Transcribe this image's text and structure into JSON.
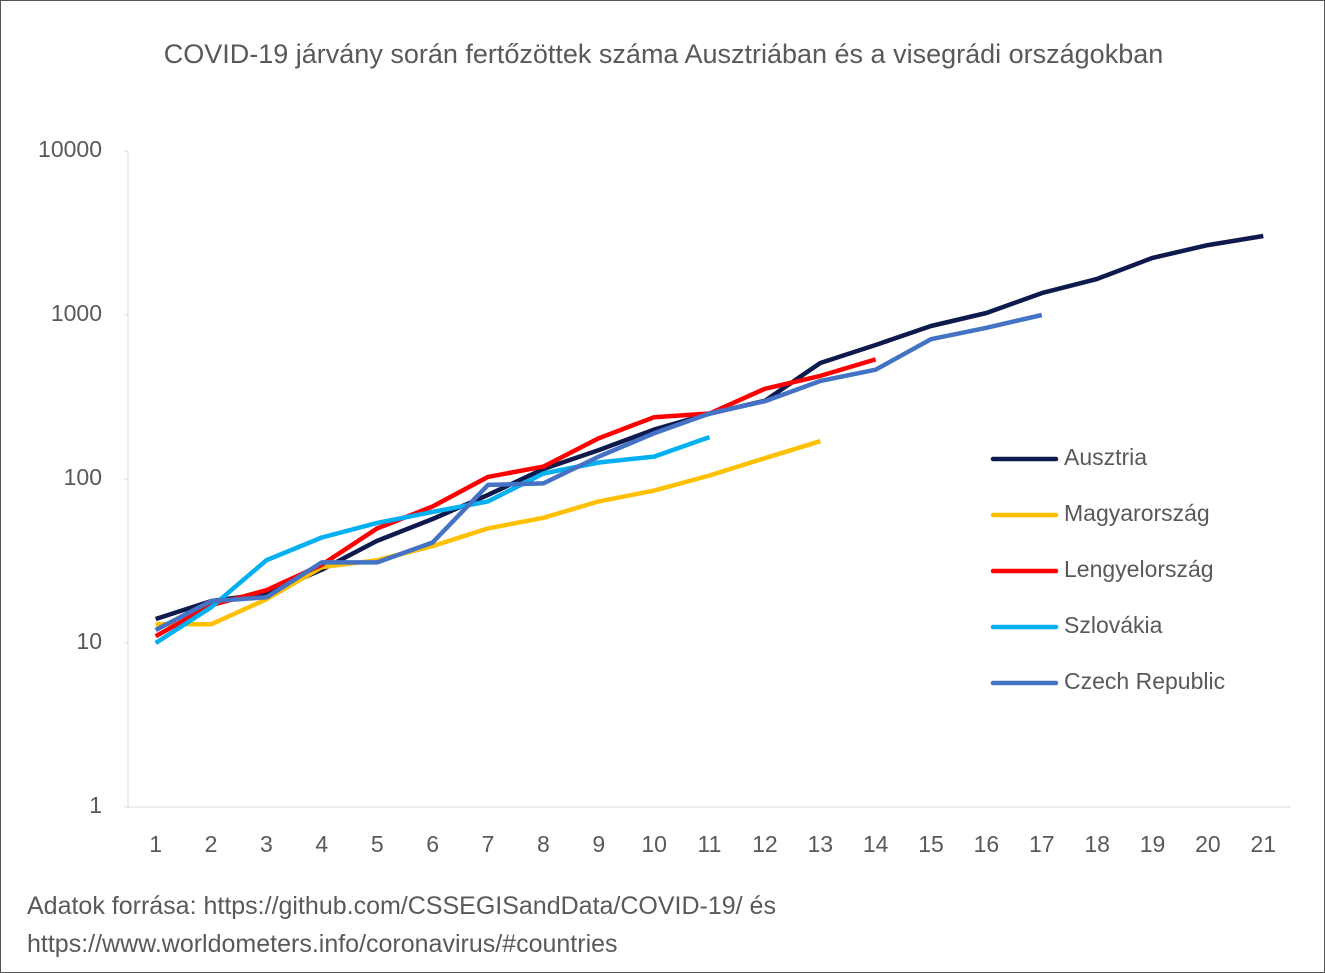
{
  "chart_data": {
    "type": "line",
    "title": "COVID-19 járvány során fertőzöttek száma Ausztriában és a visegrádi országokban",
    "source": [
      "Adatok forrása: https://github.com/CSSEGISandData/COVID-19/ és",
      "https://www.worldometers.info/coronavirus/#countries"
    ],
    "categories": [
      1,
      2,
      3,
      4,
      5,
      6,
      7,
      8,
      9,
      10,
      11,
      12,
      13,
      14,
      15,
      16,
      17,
      18,
      19,
      20,
      21
    ],
    "log_scale": true,
    "ylim": [
      1,
      10000
    ],
    "yticks": [
      1,
      10,
      100,
      1000,
      10000
    ],
    "legend": "right",
    "series": [
      {
        "name": "Ausztria",
        "color": "#0e1a4e",
        "values": [
          14,
          18,
          20,
          28,
          42,
          57,
          80,
          115,
          150,
          200,
          250,
          300,
          510,
          656,
          857,
          1028,
          1360,
          1660,
          2230,
          2670,
          3030
        ]
      },
      {
        "name": "Magyarország",
        "color": "#ffc000",
        "values": [
          13,
          13,
          18.5,
          29,
          32,
          39,
          50,
          58,
          73,
          85,
          105,
          134,
          170,
          null,
          null,
          null,
          null,
          null,
          null,
          null,
          null
        ]
      },
      {
        "name": "Lengyelország",
        "color": "#ff0000",
        "values": [
          11,
          17,
          21,
          30,
          50,
          68,
          103,
          119,
          177,
          238,
          251,
          355,
          425,
          536,
          null,
          null,
          null,
          null,
          null,
          null,
          null
        ]
      },
      {
        "name": "Szlovákia",
        "color": "#00b0f0",
        "values": [
          10,
          16.5,
          32,
          44,
          54,
          63,
          73,
          108,
          126,
          137,
          180,
          null,
          null,
          null,
          null,
          null,
          null,
          null,
          null,
          null,
          null
        ]
      },
      {
        "name": "Czech Republic",
        "color": "#4472c4",
        "values": [
          12,
          18,
          19,
          31,
          31,
          41,
          92,
          94,
          137,
          190,
          251,
          298,
          396,
          464,
          712,
          836,
          1000,
          null,
          null,
          null,
          null
        ]
      }
    ]
  }
}
